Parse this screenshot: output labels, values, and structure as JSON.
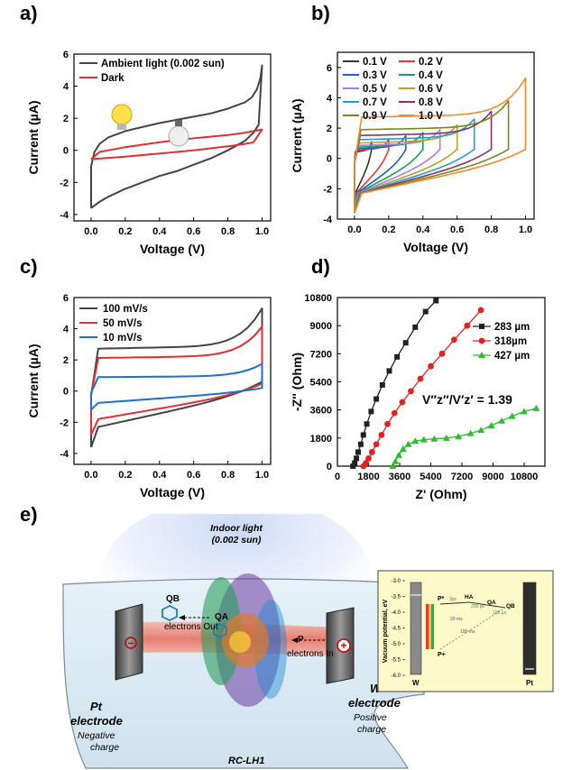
{
  "panel_labels": [
    "a)",
    "b)",
    "c)",
    "d)",
    "e)"
  ],
  "chart_data": [
    {
      "id": "a",
      "type": "line",
      "xlabel": "Voltage (V)",
      "ylabel": "Current (µA)",
      "xlim": [
        -0.1,
        1.05
      ],
      "ylim": [
        -4.4,
        6
      ],
      "xticks": [
        "0.0",
        "0.2",
        "0.4",
        "0.6",
        "0.8",
        "1.0"
      ],
      "yticks": [
        "-4",
        "-2",
        "0",
        "2",
        "4",
        "6"
      ],
      "legend_position": "top-left",
      "series": [
        {
          "name": "Ambient light (0.002 sun)",
          "color": "#444444",
          "x": [
            0,
            0.05,
            0.1,
            0.2,
            0.3,
            0.4,
            0.5,
            0.6,
            0.7,
            0.8,
            0.9,
            0.95,
            0.98,
            1.0,
            0.99,
            0.97,
            0.94,
            0.9,
            0.8,
            0.7,
            0.6,
            0.5,
            0.4,
            0.3,
            0.2,
            0.1,
            0.05,
            0.02,
            0,
            0,
            0
          ],
          "y": [
            -3.6,
            -3.2,
            -2.9,
            -2.4,
            -2.0,
            -1.6,
            -1.3,
            -0.9,
            -0.5,
            0,
            0.6,
            1.1,
            1.6,
            5.3,
            4.5,
            3.8,
            3.3,
            3.0,
            2.6,
            2.3,
            2.1,
            1.9,
            1.7,
            1.45,
            1.2,
            0.8,
            0.4,
            -0.1,
            -1.0,
            -2.5,
            -3.6
          ]
        },
        {
          "name": "Dark",
          "color": "#e03030",
          "x": [
            0,
            0.2,
            0.4,
            0.6,
            0.8,
            0.9,
            0.95,
            1.0,
            0.95,
            0.9,
            0.8,
            0.6,
            0.4,
            0.2,
            0.05,
            0
          ],
          "y": [
            -0.55,
            -0.4,
            -0.2,
            0,
            0.25,
            0.4,
            0.5,
            1.3,
            1.2,
            1.1,
            0.95,
            0.75,
            0.5,
            0.2,
            -0.1,
            -0.55
          ]
        }
      ]
    },
    {
      "id": "b",
      "type": "line",
      "xlabel": "Voltage (V)",
      "ylabel": "Current (µA)",
      "xlim": [
        -0.1,
        1.05
      ],
      "ylim": [
        -4,
        7
      ],
      "xticks": [
        "0.0",
        "0.2",
        "0.4",
        "0.6",
        "0.8",
        "1.0"
      ],
      "yticks": [
        "-4",
        "-2",
        "0",
        "2",
        "4",
        "6"
      ],
      "legend_position": "top-left",
      "series": [
        {
          "name": "0.1 V",
          "color": "#333333",
          "vmax": 0.1,
          "ipeak": 1.1
        },
        {
          "name": "0.2 V",
          "color": "#e53935",
          "vmax": 0.2,
          "ipeak": 1.3
        },
        {
          "name": "0.3 V",
          "color": "#1e5bd6",
          "vmax": 0.3,
          "ipeak": 1.5
        },
        {
          "name": "0.4 V",
          "color": "#13a35a",
          "vmax": 0.4,
          "ipeak": 1.7
        },
        {
          "name": "0.5 V",
          "color": "#b278e6",
          "vmax": 0.5,
          "ipeak": 1.9
        },
        {
          "name": "0.6 V",
          "color": "#b8a020",
          "vmax": 0.6,
          "ipeak": 2.2
        },
        {
          "name": "0.7 V",
          "color": "#1a9fd9",
          "vmax": 0.7,
          "ipeak": 2.6
        },
        {
          "name": "0.8 V",
          "color": "#8d2f66",
          "vmax": 0.8,
          "ipeak": 3.1
        },
        {
          "name": "0.9 V",
          "color": "#7a8a1a",
          "vmax": 0.9,
          "ipeak": 3.8
        },
        {
          "name": "1.0 V",
          "color": "#f28a2e",
          "vmax": 1.0,
          "ipeak": 5.3
        }
      ]
    },
    {
      "id": "c",
      "type": "line",
      "xlabel": "Voltage (V)",
      "ylabel": "Current (µA)",
      "xlim": [
        -0.1,
        1.05
      ],
      "ylim": [
        -4.7,
        6
      ],
      "xticks": [
        "0.0",
        "0.2",
        "0.4",
        "0.6",
        "0.8",
        "1.0"
      ],
      "yticks": [
        "-4",
        "-2",
        "0",
        "2",
        "4",
        "6"
      ],
      "legend_position": "top-left",
      "series": [
        {
          "name": "100 mV/s",
          "color": "#444444",
          "scale": 1.0
        },
        {
          "name": "50 mV/s",
          "color": "#e03030",
          "scale": 0.78
        },
        {
          "name": "10 mV/s",
          "color": "#1e6fd0",
          "scale": 0.33
        }
      ]
    },
    {
      "id": "d",
      "type": "scatter",
      "xlabel": "Z' (Ohm)",
      "ylabel": "-Z'' (Ohm)",
      "xlim": [
        0,
        12000
      ],
      "ylim": [
        0,
        10800
      ],
      "xticks": [
        "0",
        "1800",
        "3600",
        "5400",
        "7200",
        "9000",
        "10800"
      ],
      "yticks": [
        "0",
        "1800",
        "3600",
        "5400",
        "7200",
        "9000",
        "10800"
      ],
      "legend_position": "top-right",
      "annotation": "V″z″/V′z′ = 1.39",
      "series": [
        {
          "name": "283 µm",
          "color": "#222222",
          "marker": "square",
          "x": [
            900,
            1000,
            1100,
            1200,
            1350,
            1500,
            1700,
            1950,
            2250,
            2600,
            3000,
            3450,
            3950,
            4500,
            5100,
            5700
          ],
          "y": [
            0,
            200,
            500,
            900,
            1400,
            2000,
            2700,
            3500,
            4300,
            5200,
            6100,
            7000,
            7900,
            8900,
            9900,
            10600
          ]
        },
        {
          "name": "318µm",
          "color": "#e52020",
          "marker": "circle",
          "x": [
            1500,
            1650,
            1800,
            2000,
            2250,
            2550,
            2900,
            3300,
            3750,
            4250,
            4800,
            5400,
            6050,
            6750,
            7500,
            8300
          ],
          "y": [
            0,
            200,
            500,
            900,
            1400,
            2000,
            2700,
            3400,
            4100,
            4800,
            5600,
            6400,
            7200,
            8100,
            9000,
            10000
          ]
        },
        {
          "name": "427 µm",
          "color": "#2bbf2b",
          "marker": "triangle",
          "x": [
            3200,
            3350,
            3550,
            3800,
            4100,
            4500,
            5000,
            5600,
            6300,
            7000,
            7700,
            8300,
            8900,
            9500,
            10100,
            10800,
            11500
          ],
          "y": [
            0,
            300,
            700,
            1100,
            1400,
            1600,
            1700,
            1750,
            1800,
            1900,
            2100,
            2300,
            2600,
            2900,
            3200,
            3500,
            3700
          ]
        }
      ]
    }
  ],
  "schematic": {
    "light_label_1": "Indoor light",
    "light_label_2": "(0.002 sun)",
    "qb_label": "QB",
    "qa_label": "QA",
    "p_label": "P",
    "electrons_out": "electrons Out",
    "electrons_in": "electrons In",
    "pt_electrode_1": "Pt",
    "pt_electrode_2": "electrode",
    "negative_1": "Negative",
    "negative_2": "charge",
    "w_electrode_1": "W",
    "w_electrode_2": "electrode",
    "positive_1": "Positive",
    "positive_2": "charge",
    "rc_label": "RC-LH1",
    "minus_sign": "−",
    "plus_sign": "+"
  },
  "energy_diagram": {
    "ylabel": "Vacuum potential, eV",
    "yticks": [
      "-3.0",
      "-3.5",
      "-4.0",
      "-4.5",
      "-5.0",
      "-5.5",
      "-6.0"
    ],
    "left_electrode": "W",
    "right_electrode": "Pt",
    "labels": [
      "P*",
      "HA",
      "QA",
      "QB",
      "P+"
    ],
    "times": [
      "3ps",
      "200 ps",
      "100 µs",
      "20 ms",
      "100 ms"
    ]
  }
}
